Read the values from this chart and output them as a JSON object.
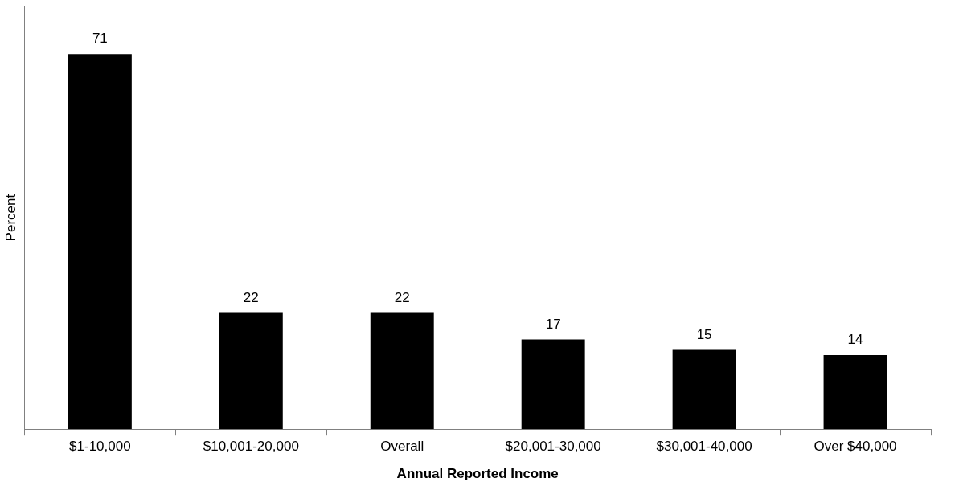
{
  "chart_data": {
    "type": "bar",
    "xlabel": "Annual Reported Income",
    "ylabel": "Percent",
    "categories": [
      "$1-10,000",
      "$10,001-20,000",
      "Overall",
      "$20,001-30,000",
      "$30,001-40,000",
      "Over $40,000"
    ],
    "values": [
      71,
      22,
      22,
      17,
      15,
      14
    ],
    "color": "#000000",
    "ylim": [
      0,
      80
    ],
    "data_labels": true,
    "grid": false,
    "legend": false,
    "tick_labels": "x"
  }
}
